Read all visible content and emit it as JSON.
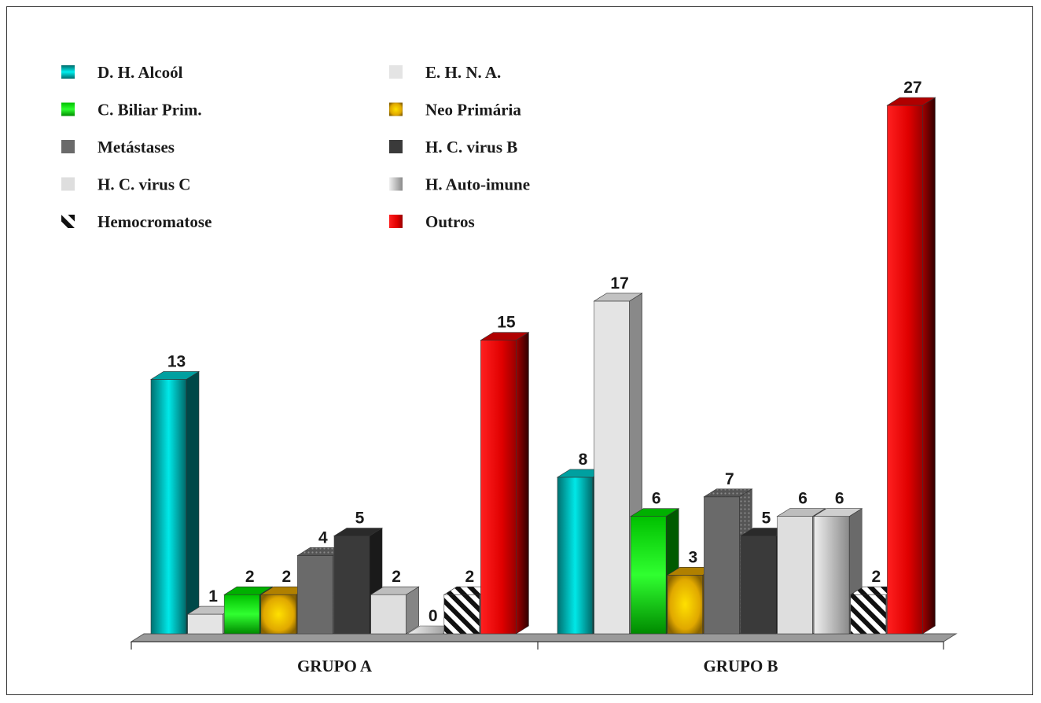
{
  "chart_data": {
    "type": "bar",
    "categories": [
      "GRUPO A",
      "GRUPO B"
    ],
    "series": [
      {
        "name": "D. H. Alcoól",
        "values": [
          13,
          8
        ],
        "color": "#00a8a8",
        "pattern": "teal-gradient"
      },
      {
        "name": "E. H. N. A.",
        "values": [
          1,
          17
        ],
        "color": "#e4e4e4",
        "pattern": "solid"
      },
      {
        "name": "C. Biliar Prim.",
        "values": [
          2,
          6
        ],
        "color": "#18c018",
        "pattern": "green-gradient"
      },
      {
        "name": "Neo Primária",
        "values": [
          2,
          3
        ],
        "color": "#d8a800",
        "pattern": "gold-gradient"
      },
      {
        "name": "Metástases",
        "values": [
          4,
          7
        ],
        "color": "#6a6a6a",
        "pattern": "solid"
      },
      {
        "name": "H. C. virus B",
        "values": [
          5,
          5
        ],
        "color": "#3a3a3a",
        "pattern": "solid"
      },
      {
        "name": "H. C. virus C",
        "values": [
          2,
          6
        ],
        "color": "#dedede",
        "pattern": "solid"
      },
      {
        "name": "H. Auto-imune",
        "values": [
          0,
          6
        ],
        "color": "#b8b8b8",
        "pattern": "gray-gradient"
      },
      {
        "name": "Hemocromatose",
        "values": [
          2,
          2
        ],
        "color": "#1a1a1a",
        "pattern": "diagonal-stripes"
      },
      {
        "name": "Outros",
        "values": [
          15,
          27
        ],
        "color": "#e00000",
        "pattern": "red-gradient"
      }
    ],
    "value_labels": [
      [
        "13",
        "1",
        "2",
        "2",
        "4",
        "5",
        "2",
        "0",
        "2",
        "15"
      ],
      [
        "8",
        "17",
        "6",
        "3",
        "7",
        "5",
        "6",
        "6",
        "2",
        "27"
      ]
    ],
    "title": "",
    "xlabel": "",
    "ylabel": "",
    "ylim": [
      0,
      27
    ],
    "grid": false,
    "legend_position": "top-left, two columns"
  }
}
